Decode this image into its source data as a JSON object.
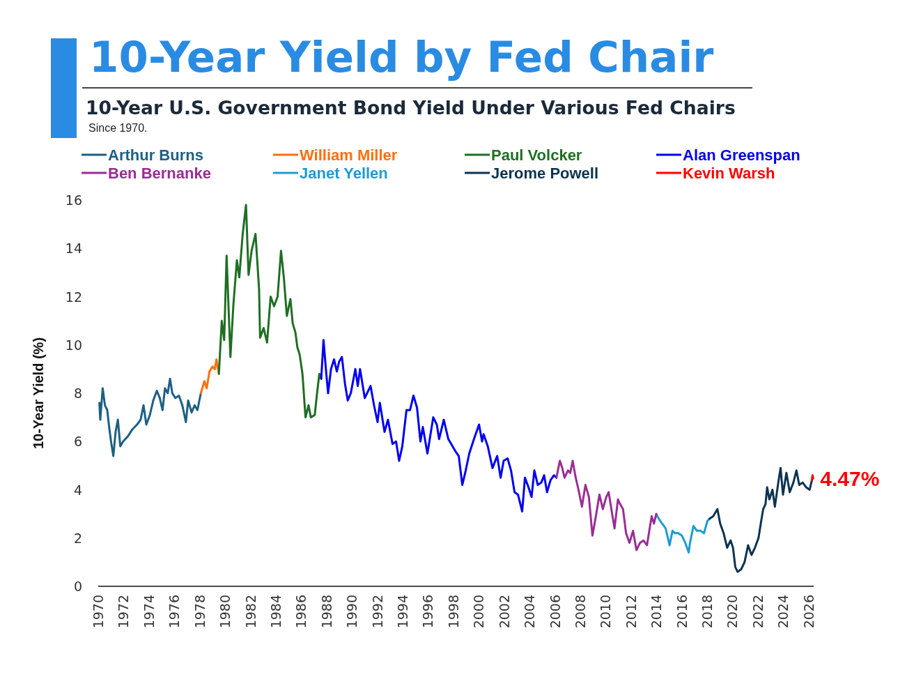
{
  "chart_data": {
    "type": "line",
    "title": "10-Year Yield by Fed Chair",
    "subtitle": "10-Year U.S. Government Bond Yield Under Various Fed Chairs",
    "annotations": [
      "Since 1970."
    ],
    "ylabel": "10-Year Yield (%)",
    "xlim": [
      1970,
      2026.4
    ],
    "xticks": [
      1970,
      1972,
      1974,
      1976,
      1978,
      1980,
      1982,
      1984,
      1986,
      1988,
      1990,
      1992,
      1994,
      1996,
      1998,
      2000,
      2002,
      2004,
      2006,
      2008,
      2010,
      2012,
      2014,
      2016,
      2018,
      2020,
      2022,
      2024,
      2026
    ],
    "ylim": [
      0,
      16
    ],
    "yticks": [
      0,
      2,
      4,
      6,
      8,
      10,
      12,
      14,
      16
    ],
    "legend": "top",
    "series": [
      {
        "name": "Arthur Burns",
        "color": "#1d5f84",
        "x": [
          1970.09,
          1970.16,
          1970.35,
          1970.53,
          1970.71,
          1970.86,
          1971.01,
          1971.19,
          1971.37,
          1971.55,
          1971.74,
          1971.96,
          1972.32,
          1972.69,
          1973.06,
          1973.34,
          1973.57,
          1973.79,
          1974.07,
          1974.34,
          1974.62,
          1974.85,
          1975.07,
          1975.26,
          1975.48,
          1975.66,
          1975.84,
          1976.08,
          1976.36,
          1976.63,
          1976.91,
          1977.09,
          1977.36,
          1977.6,
          1977.82,
          1978.09
        ],
        "values": [
          7.6,
          6.9,
          8.2,
          7.5,
          7.3,
          6.6,
          6.0,
          5.4,
          6.4,
          6.9,
          5.8,
          6.0,
          6.2,
          6.5,
          6.7,
          6.9,
          7.5,
          6.7,
          7.1,
          7.7,
          8.1,
          7.8,
          7.3,
          8.2,
          8.0,
          8.6,
          8.0,
          7.8,
          7.9,
          7.5,
          6.8,
          7.7,
          7.2,
          7.5,
          7.3,
          8.0
        ]
      },
      {
        "name": "William Miller",
        "color": "#ff6f0f",
        "x": [
          1978.09,
          1978.37,
          1978.55,
          1978.77,
          1979.01,
          1979.19,
          1979.32,
          1979.51
        ],
        "values": [
          8.0,
          8.5,
          8.2,
          8.9,
          9.1,
          9.0,
          9.4,
          8.8
        ]
      },
      {
        "name": "Paul Volcker",
        "color": "#1f6e23",
        "x": [
          1979.51,
          1979.74,
          1979.93,
          1980.12,
          1980.42,
          1980.66,
          1980.93,
          1981.12,
          1981.39,
          1981.65,
          1981.85,
          1982.09,
          1982.4,
          1982.68,
          1982.76,
          1983.04,
          1983.31,
          1983.59,
          1983.86,
          1984.14,
          1984.41,
          1984.63,
          1984.87,
          1985.15,
          1985.33,
          1985.55,
          1985.7,
          1985.88,
          1986.1,
          1986.34,
          1986.58,
          1986.76,
          1987.07,
          1987.25,
          1987.43,
          1987.58
        ],
        "values": [
          8.8,
          11.0,
          10.2,
          13.7,
          9.5,
          11.7,
          13.5,
          12.8,
          14.6,
          15.8,
          12.9,
          13.9,
          14.6,
          12.3,
          10.3,
          10.7,
          10.1,
          12.0,
          11.6,
          12.0,
          13.9,
          12.8,
          11.2,
          11.9,
          10.9,
          10.5,
          9.9,
          9.6,
          8.8,
          7.0,
          7.5,
          7.0,
          7.1,
          8.0,
          8.8,
          8.6
        ]
      },
      {
        "name": "Alan Greenspan",
        "color": "#0000f0",
        "x": [
          1987.58,
          1987.76,
          1987.98,
          1988.12,
          1988.35,
          1988.59,
          1988.81,
          1988.99,
          1989.21,
          1989.45,
          1989.67,
          1989.91,
          1990.27,
          1990.46,
          1990.64,
          1991.01,
          1991.47,
          1991.74,
          1992.02,
          1992.2,
          1992.57,
          1992.84,
          1993.2,
          1993.48,
          1993.72,
          1993.97,
          1994.3,
          1994.58,
          1994.85,
          1995.13,
          1995.4,
          1995.59,
          1995.95,
          1996.41,
          1996.69,
          1996.87,
          1997.24,
          1997.6,
          1998.15,
          1998.42,
          1998.7,
          1998.97,
          1999.25,
          1999.62,
          2000.02,
          2000.26,
          2000.38,
          2000.71,
          2001.08,
          2001.45,
          2001.72,
          2001.96,
          2002.27,
          2002.54,
          2002.82,
          2003.09,
          2003.42,
          2003.64,
          2003.92,
          2004.16,
          2004.38,
          2004.65,
          2004.93,
          2005.15,
          2005.38,
          2005.66,
          2005.93,
          2006.12
        ],
        "values": [
          8.6,
          10.2,
          8.8,
          8.0,
          9.0,
          9.4,
          8.9,
          9.3,
          9.5,
          8.4,
          7.7,
          8.0,
          9.0,
          8.3,
          9.0,
          7.8,
          8.3,
          7.5,
          6.8,
          7.6,
          6.4,
          6.9,
          5.9,
          6.0,
          5.2,
          5.8,
          7.3,
          7.3,
          7.9,
          7.4,
          6.0,
          6.6,
          5.5,
          7.0,
          6.7,
          6.1,
          6.9,
          6.1,
          5.6,
          5.4,
          4.2,
          4.8,
          5.5,
          6.1,
          6.7,
          6.0,
          6.3,
          5.8,
          4.9,
          5.4,
          4.5,
          5.2,
          5.3,
          4.8,
          3.9,
          3.8,
          3.1,
          4.5,
          4.1,
          3.7,
          4.8,
          4.2,
          4.3,
          4.6,
          3.9,
          4.4,
          4.6,
          4.5
        ]
      },
      {
        "name": "Ben Bernanke",
        "color": "#9a2d95",
        "x": [
          2006.12,
          2006.39,
          2006.58,
          2006.76,
          2007.03,
          2007.21,
          2007.4,
          2007.64,
          2007.86,
          2008.13,
          2008.41,
          2008.68,
          2008.96,
          2009.23,
          2009.51,
          2009.78,
          2010.05,
          2010.24,
          2010.42,
          2010.7,
          2010.97,
          2011.15,
          2011.37,
          2011.61,
          2011.88,
          2012.16,
          2012.43,
          2012.71,
          2012.98,
          2013.26,
          2013.44,
          2013.63,
          2013.81,
          2013.99,
          2014.07
        ],
        "values": [
          4.5,
          5.2,
          4.9,
          4.5,
          4.8,
          4.7,
          5.2,
          4.5,
          4.0,
          3.3,
          4.2,
          3.7,
          2.1,
          2.9,
          3.8,
          3.2,
          3.7,
          3.9,
          3.3,
          2.4,
          3.6,
          3.4,
          3.2,
          2.2,
          1.8,
          2.3,
          1.5,
          1.8,
          1.9,
          1.7,
          2.3,
          2.9,
          2.6,
          3.0,
          2.9
        ]
      },
      {
        "name": "Janet Yellen",
        "color": "#1c9bd6",
        "x": [
          2014.07,
          2014.45,
          2014.73,
          2015.04,
          2015.27,
          2015.46,
          2015.73,
          2016.01,
          2016.28,
          2016.55,
          2016.65,
          2016.92,
          2017.2,
          2017.47,
          2017.75,
          2018.02,
          2018.19
        ],
        "values": [
          2.9,
          2.6,
          2.4,
          1.7,
          2.3,
          2.2,
          2.2,
          2.1,
          1.8,
          1.4,
          1.8,
          2.5,
          2.3,
          2.3,
          2.2,
          2.7,
          2.8
        ]
      },
      {
        "name": "Jerome Powell",
        "color": "#0c3350",
        "x": [
          2018.19,
          2018.48,
          2018.81,
          2019.03,
          2019.3,
          2019.58,
          2019.85,
          2020.04,
          2020.22,
          2020.4,
          2020.68,
          2020.95,
          2021.23,
          2021.5,
          2021.77,
          2022.05,
          2022.23,
          2022.42,
          2022.6,
          2022.73,
          2022.91,
          2023.15,
          2023.34,
          2023.61,
          2023.79,
          2023.98,
          2024.25,
          2024.51,
          2024.8,
          2025.04,
          2025.26,
          2025.53,
          2025.81,
          2026.08,
          2026.26
        ],
        "values": [
          2.8,
          2.9,
          3.2,
          2.6,
          2.2,
          1.6,
          1.9,
          1.6,
          0.8,
          0.6,
          0.7,
          1.0,
          1.7,
          1.3,
          1.6,
          2.0,
          2.6,
          3.2,
          3.4,
          4.1,
          3.6,
          4.0,
          3.3,
          4.3,
          4.9,
          3.8,
          4.7,
          3.9,
          4.3,
          4.8,
          4.2,
          4.3,
          4.1,
          4.0,
          4.4
        ]
      },
      {
        "name": "Kevin Warsh",
        "color": "#ff0000",
        "x": [
          2026.26,
          2026.31,
          2026.36
        ],
        "values": [
          4.4,
          4.6,
          4.47
        ],
        "value_labels": [
          null,
          null,
          "4.47%"
        ]
      }
    ]
  }
}
